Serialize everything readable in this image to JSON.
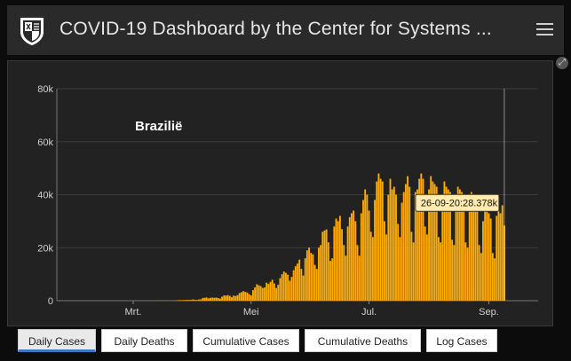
{
  "header": {
    "title": "COVID-19 Dashboard by the Center for Systems ...",
    "menu_icon": "hamburger-menu-icon"
  },
  "panel": {
    "expand_icon": "expand-icon",
    "expand_glyph": "⤢"
  },
  "chart_data": {
    "type": "bar",
    "annotation": "Braziliё",
    "annotation_text": "Brazilië",
    "x_axis": {
      "start": "2020-01-22",
      "end": "2020-09-26",
      "tick_labels": [
        {
          "label": "Mrt.",
          "date": "2020-03-01"
        },
        {
          "label": "Mei",
          "date": "2020-05-01"
        },
        {
          "label": "Jul.",
          "date": "2020-07-01"
        },
        {
          "label": "Sep.",
          "date": "2020-09-01"
        }
      ]
    },
    "y_axis": {
      "ylim": [
        0,
        80000
      ],
      "tick_labels": [
        "0",
        "20k",
        "40k",
        "60k",
        "80k"
      ],
      "tick_values": [
        0,
        20000,
        40000,
        60000,
        80000
      ]
    },
    "grid": true,
    "bar_color": "#ffab00",
    "daily_values": [
      0,
      0,
      0,
      0,
      0,
      0,
      0,
      0,
      0,
      0,
      0,
      0,
      0,
      0,
      0,
      0,
      0,
      0,
      0,
      0,
      0,
      0,
      0,
      0,
      0,
      0,
      0,
      0,
      0,
      0,
      0,
      0,
      0,
      0,
      0,
      1,
      0,
      0,
      0,
      1,
      0,
      0,
      1,
      0,
      1,
      0,
      0,
      0,
      0,
      0,
      1,
      4,
      5,
      7,
      6,
      13,
      38,
      20,
      39,
      8,
      42,
      66,
      162,
      233,
      200,
      250,
      240,
      310,
      260,
      302,
      484,
      325,
      313,
      440,
      520,
      1041,
      1100,
      1222,
      889,
      1086,
      1185,
      1081,
      1206,
      1000,
      800,
      1500,
      1990,
      1930,
      2100,
      1830,
      1300,
      1900,
      1800,
      2100,
      2900,
      3200,
      3600,
      3300,
      3100,
      2500,
      2000,
      4000,
      5000,
      6200,
      5800,
      5500,
      4800,
      5000,
      6800,
      6300,
      7100,
      7900,
      6500,
      4800,
      6000,
      8500,
      10000,
      11000,
      10500,
      9800,
      7500,
      9000,
      11500,
      13000,
      14000,
      15500,
      12000,
      9500,
      16000,
      19000,
      20000,
      18000,
      17500,
      13500,
      12000,
      20000,
      21000,
      26000,
      26500,
      26900,
      22000,
      15000,
      16000,
      28000,
      31000,
      30000,
      32000,
      27000,
      21000,
      17000,
      28000,
      31500,
      33000,
      34000,
      30000,
      21000,
      17000,
      33000,
      38000,
      42000,
      40000,
      34000,
      26000,
      24000,
      38000,
      45000,
      48000,
      46000,
      45000,
      30000,
      25000,
      40000,
      46000,
      42000,
      43000,
      40000,
      29000,
      24000,
      37000,
      41000,
      44000,
      47000,
      43000,
      26000,
      22000,
      41000,
      42000,
      46000,
      48000,
      46000,
      28000,
      25000,
      42000,
      47000,
      45000,
      44000,
      43000,
      24000,
      22000,
      40000,
      45000,
      43000,
      42000,
      41000,
      23000,
      21000,
      38000,
      43000,
      42000,
      41000,
      40000,
      22000,
      20000,
      36000,
      41000,
      40000,
      39000,
      38000,
      21000,
      18000,
      30000,
      35000,
      36000,
      33000,
      31000,
      18000,
      16000,
      32000,
      34000,
      33000,
      36000,
      28378
    ],
    "highlight": {
      "date": "26-09-20",
      "value": 28378,
      "tooltip": "26-09-20:28.378k"
    }
  },
  "tabs": [
    {
      "label": "Daily Cases",
      "active": true
    },
    {
      "label": "Daily Deaths",
      "active": false
    },
    {
      "label": "Cumulative Cases",
      "active": false
    },
    {
      "label": "Cumulative Deaths",
      "active": false
    },
    {
      "label": "Log Cases",
      "active": false
    }
  ]
}
